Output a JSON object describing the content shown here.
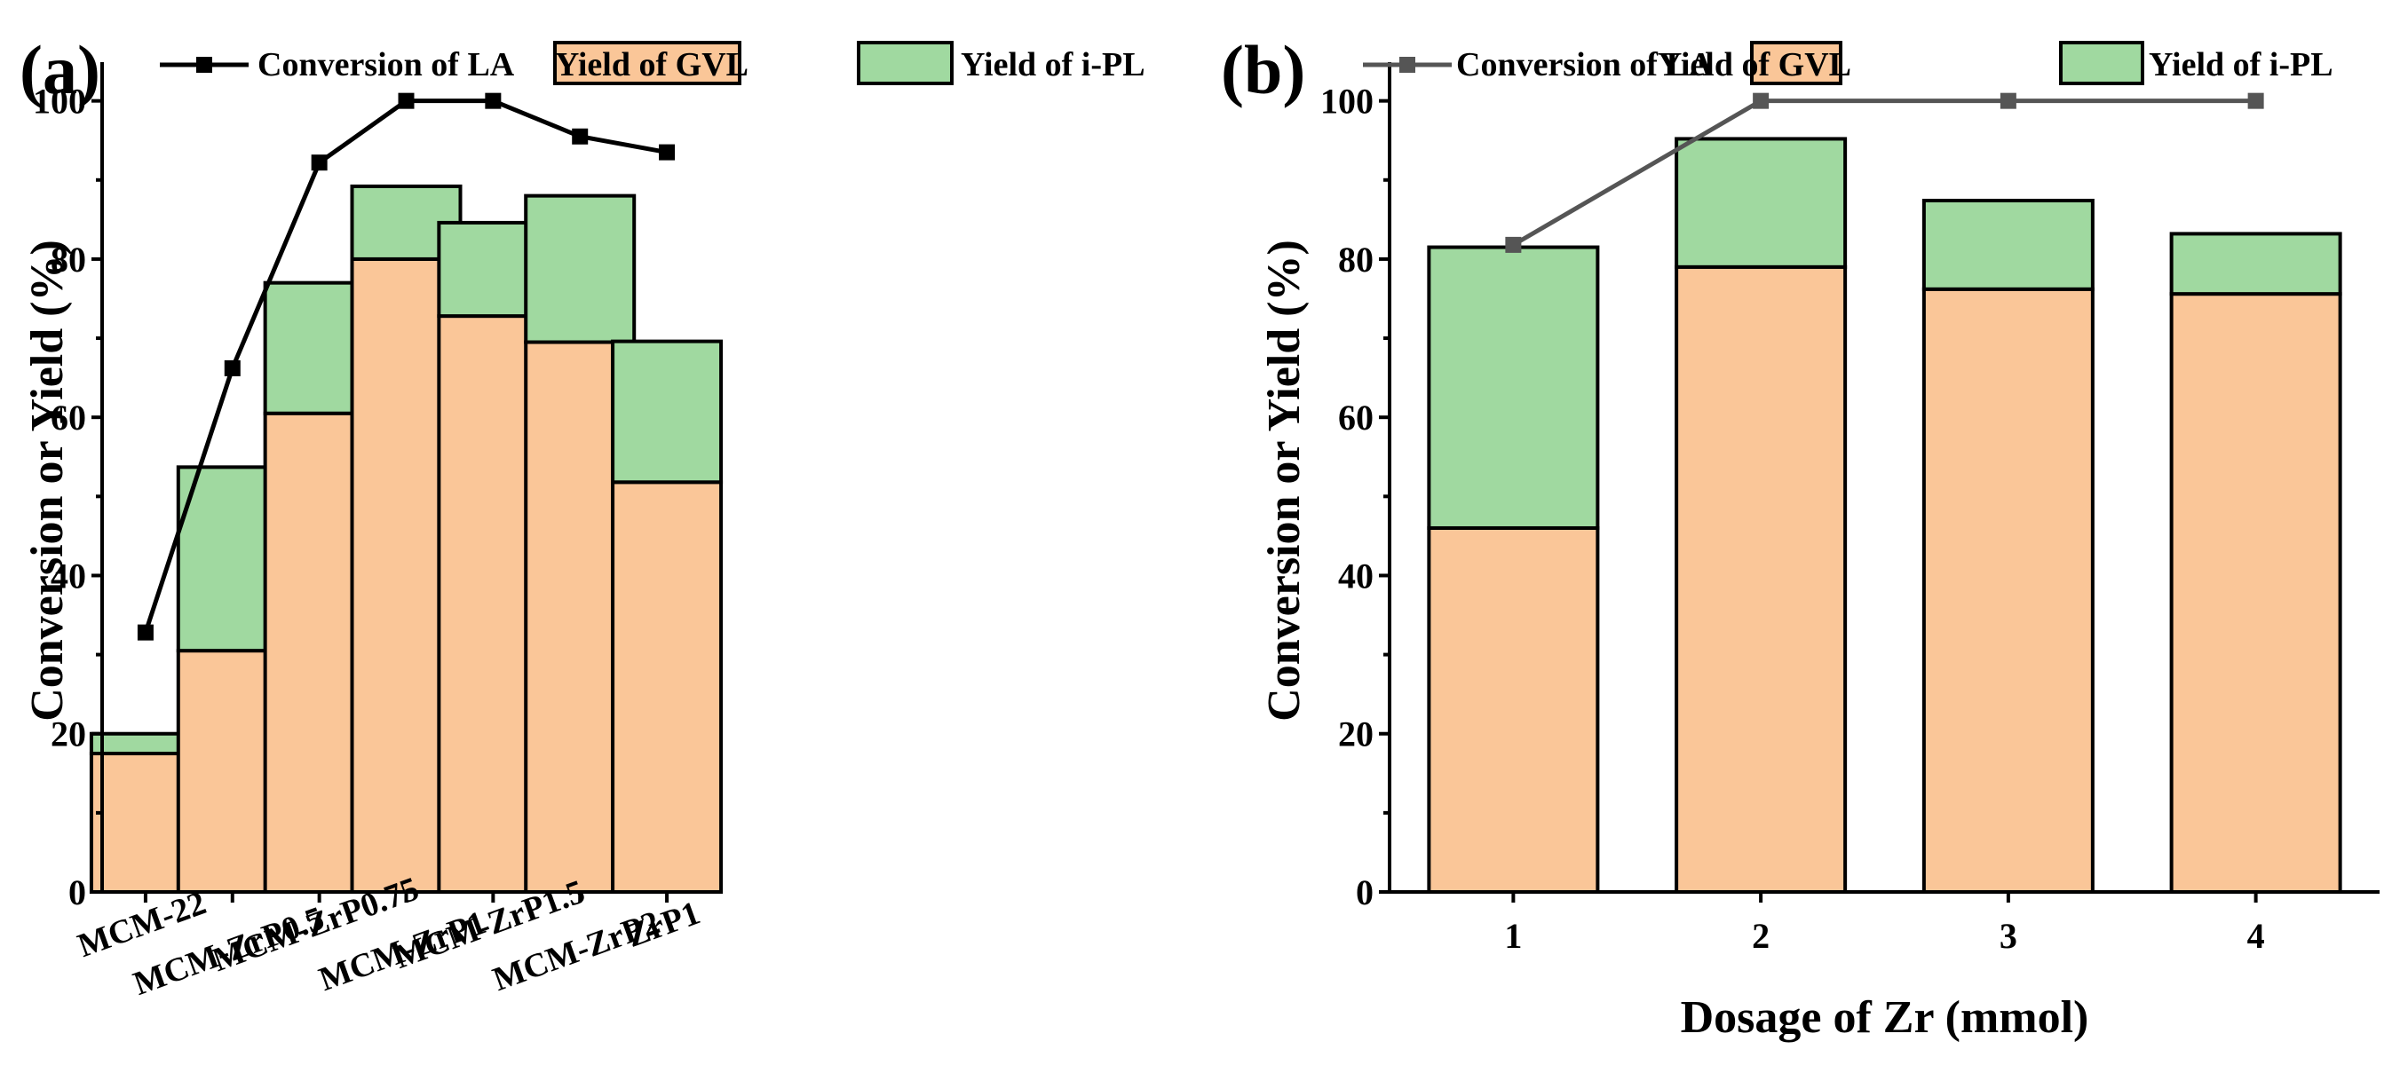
{
  "chart_data": [
    {
      "type": "bar",
      "stacked": true,
      "panel_label": "(a)",
      "categories": [
        "MCM-22",
        "MCM-ZrP0.5",
        "MCM-ZrP0.75",
        "MCM-ZrP1",
        "MCM-ZrP1.5",
        "MCM-ZrP2",
        "ZrP1"
      ],
      "series": [
        {
          "name": "Yield of GVL",
          "type": "bar",
          "color": "#FAC698",
          "values": [
            17.5,
            30.5,
            60.5,
            80,
            72.8,
            69.5,
            51.8
          ]
        },
        {
          "name": "Yield of i-PL",
          "type": "bar",
          "color": "#A0D9A0",
          "values": [
            2.5,
            23.2,
            16.5,
            9.2,
            11.8,
            18.5,
            17.8
          ]
        },
        {
          "name": "Conversion of LA",
          "type": "line",
          "color": "#000000",
          "values": [
            32.8,
            66.2,
            92.2,
            100,
            100,
            95.5,
            93.5
          ]
        }
      ],
      "legend": [
        "Conversion of LA",
        "Yield of GVL",
        "Yield of i-PL"
      ],
      "legend_position": "top",
      "xlabel": "",
      "ylabel": "Conversion or Yield (%)",
      "ylim": [
        0,
        104
      ],
      "yticks": [
        "0",
        "20",
        "40",
        "60",
        "80",
        "100"
      ]
    },
    {
      "type": "bar",
      "stacked": true,
      "panel_label": "(b)",
      "categories": [
        "1",
        "2",
        "3",
        "4"
      ],
      "series": [
        {
          "name": "Yield of GVL",
          "type": "bar",
          "color": "#FAC698",
          "values": [
            46,
            79,
            76.2,
            75.6
          ]
        },
        {
          "name": "Yield of i-PL",
          "type": "bar",
          "color": "#A0D9A0",
          "values": [
            35.5,
            16.2,
            11.2,
            7.6
          ]
        },
        {
          "name": "Conversion of LA",
          "type": "line",
          "color": "#555555",
          "values": [
            81.8,
            100,
            100,
            100
          ]
        }
      ],
      "legend": [
        "Conversion of LA",
        "Yield of GVL",
        "Yield of i-PL"
      ],
      "legend_position": "top",
      "xlabel": "Dosage of Zr (mmol)",
      "ylabel": "Conversion or Yield (%)",
      "ylim": [
        0,
        104
      ],
      "yticks": [
        "0",
        "20",
        "40",
        "60",
        "80",
        "100"
      ]
    }
  ]
}
